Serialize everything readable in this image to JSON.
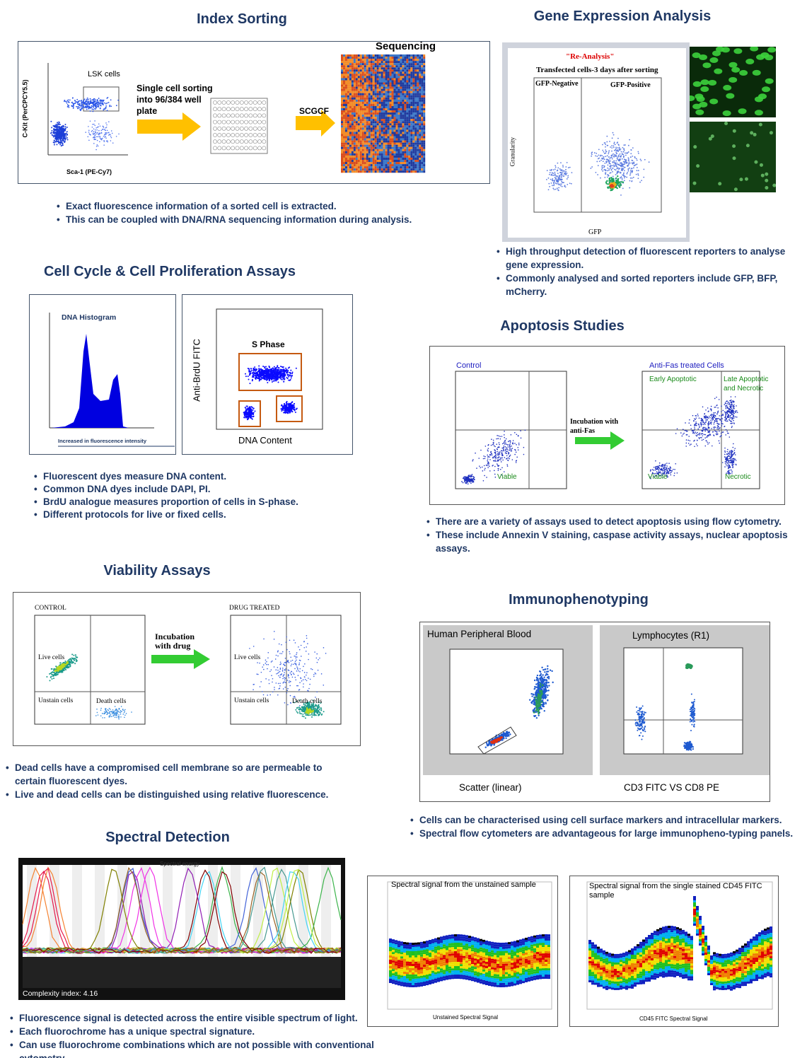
{
  "index_sorting": {
    "title": "Index Sorting",
    "figure": {
      "gate_label": "LSK cells",
      "y_axis": "C-Kit (PerCPCY5.5)",
      "x_axis": "Sca-1 (PE-Cy7)",
      "step_1": "Single cell sorting into 96/384 well plate",
      "step_2": "SCGCF",
      "heatmap_title": "Sequencing"
    },
    "bullets": [
      "Exact fluorescence information of a sorted cell is extracted.",
      "This can be coupled with DNA/RNA sequencing information during analysis."
    ]
  },
  "gene_expression": {
    "title": "Gene Expression Analysis",
    "figure": {
      "heading": "\"Re-Analysis\"",
      "subheading": "Transfected cells-3 days after sorting",
      "gate_left": "GFP-Negative",
      "gate_right": "GFP-Positive",
      "y_axis": "Granularity",
      "x_axis": "GFP"
    },
    "bullets": [
      "High throughput detection of fluorescent reporters to analyse gene expression.",
      "Commonly analysed and sorted reporters include GFP, BFP, mCherry."
    ]
  },
  "cell_cycle": {
    "title": "Cell Cycle & Cell Proliferation Assays",
    "figure": {
      "histogram_title": "DNA Histogram",
      "histogram_caption": "Increased in fluorescence intensity",
      "gate_label": "S Phase",
      "y_axis": "Anti-BrdU FITC",
      "x_axis": "DNA Content"
    },
    "bullets": [
      "Fluorescent dyes measure DNA content.",
      "Common DNA dyes include DAPI, PI.",
      "BrdU analogue measures proportion of cells in S-phase.",
      "Different protocols for live or fixed cells."
    ]
  },
  "apoptosis": {
    "title": "Apoptosis Studies",
    "figure": {
      "left_title": "Control",
      "right_title": "Anti-Fas treated Cells",
      "arrow_label": "Incubation with anti-Fas",
      "left_viable": "Viable",
      "early": "Early Apoptotic",
      "late": "Late Apoptotic and Necrotic",
      "right_viable": "Viable",
      "necrotic": "Necrotic"
    },
    "bullets": [
      "There are a variety of assays used to detect apoptosis using flow cytometry.",
      "These include Annexin V staining, caspase activity assays, nuclear apoptosis assays."
    ]
  },
  "viability": {
    "title": "Viability Assays",
    "figure": {
      "left_title": "CONTROL",
      "right_title": "DRUG TREATED",
      "arrow_label": "Incubation with drug",
      "left_live": "Live cells",
      "left_unstain": "Unstain cells",
      "left_death": "Death cells",
      "right_live": "Live cells",
      "right_unstain": "Unstain cells",
      "right_death": "Death cells"
    },
    "bullets": [
      "Dead cells have a compromised cell membrane so are permeable to certain fluorescent dyes.",
      "Live and dead cells can be distinguished using relative fluorescence."
    ]
  },
  "immunophenotyping": {
    "title": "Immunophenotyping",
    "figure": {
      "left_title": "Human Peripheral Blood",
      "right_title": "Lymphocytes (R1)",
      "left_caption": "Scatter (linear)",
      "right_caption": "CD3 FITC VS CD8 PE"
    },
    "bullets": [
      "Cells can be characterised using cell surface markers and intracellular markers.",
      "Spectral flow cytometers are advantageous for large immunopheno-typing panels."
    ]
  },
  "spectral": {
    "title": "Spectral Detection",
    "figure": {
      "chart_title": "Spectral energy",
      "complexity": "Complexity index: 4.16",
      "unstained_caption": "Spectral signal from the unstained sample",
      "unstained_axis": "Unstained Spectral Signal",
      "stained_caption": "Spectral signal from the single stained CD45 FITC sample",
      "stained_axis": "CD45 FITC Spectral Signal"
    },
    "bullets": [
      "Fluorescence signal is detected across the entire visible spectrum of light.",
      "Each fluorochrome has a unique spectral signature.",
      "Can use fluorochrome combinations which are not possible with conventional cytometry"
    ]
  }
}
